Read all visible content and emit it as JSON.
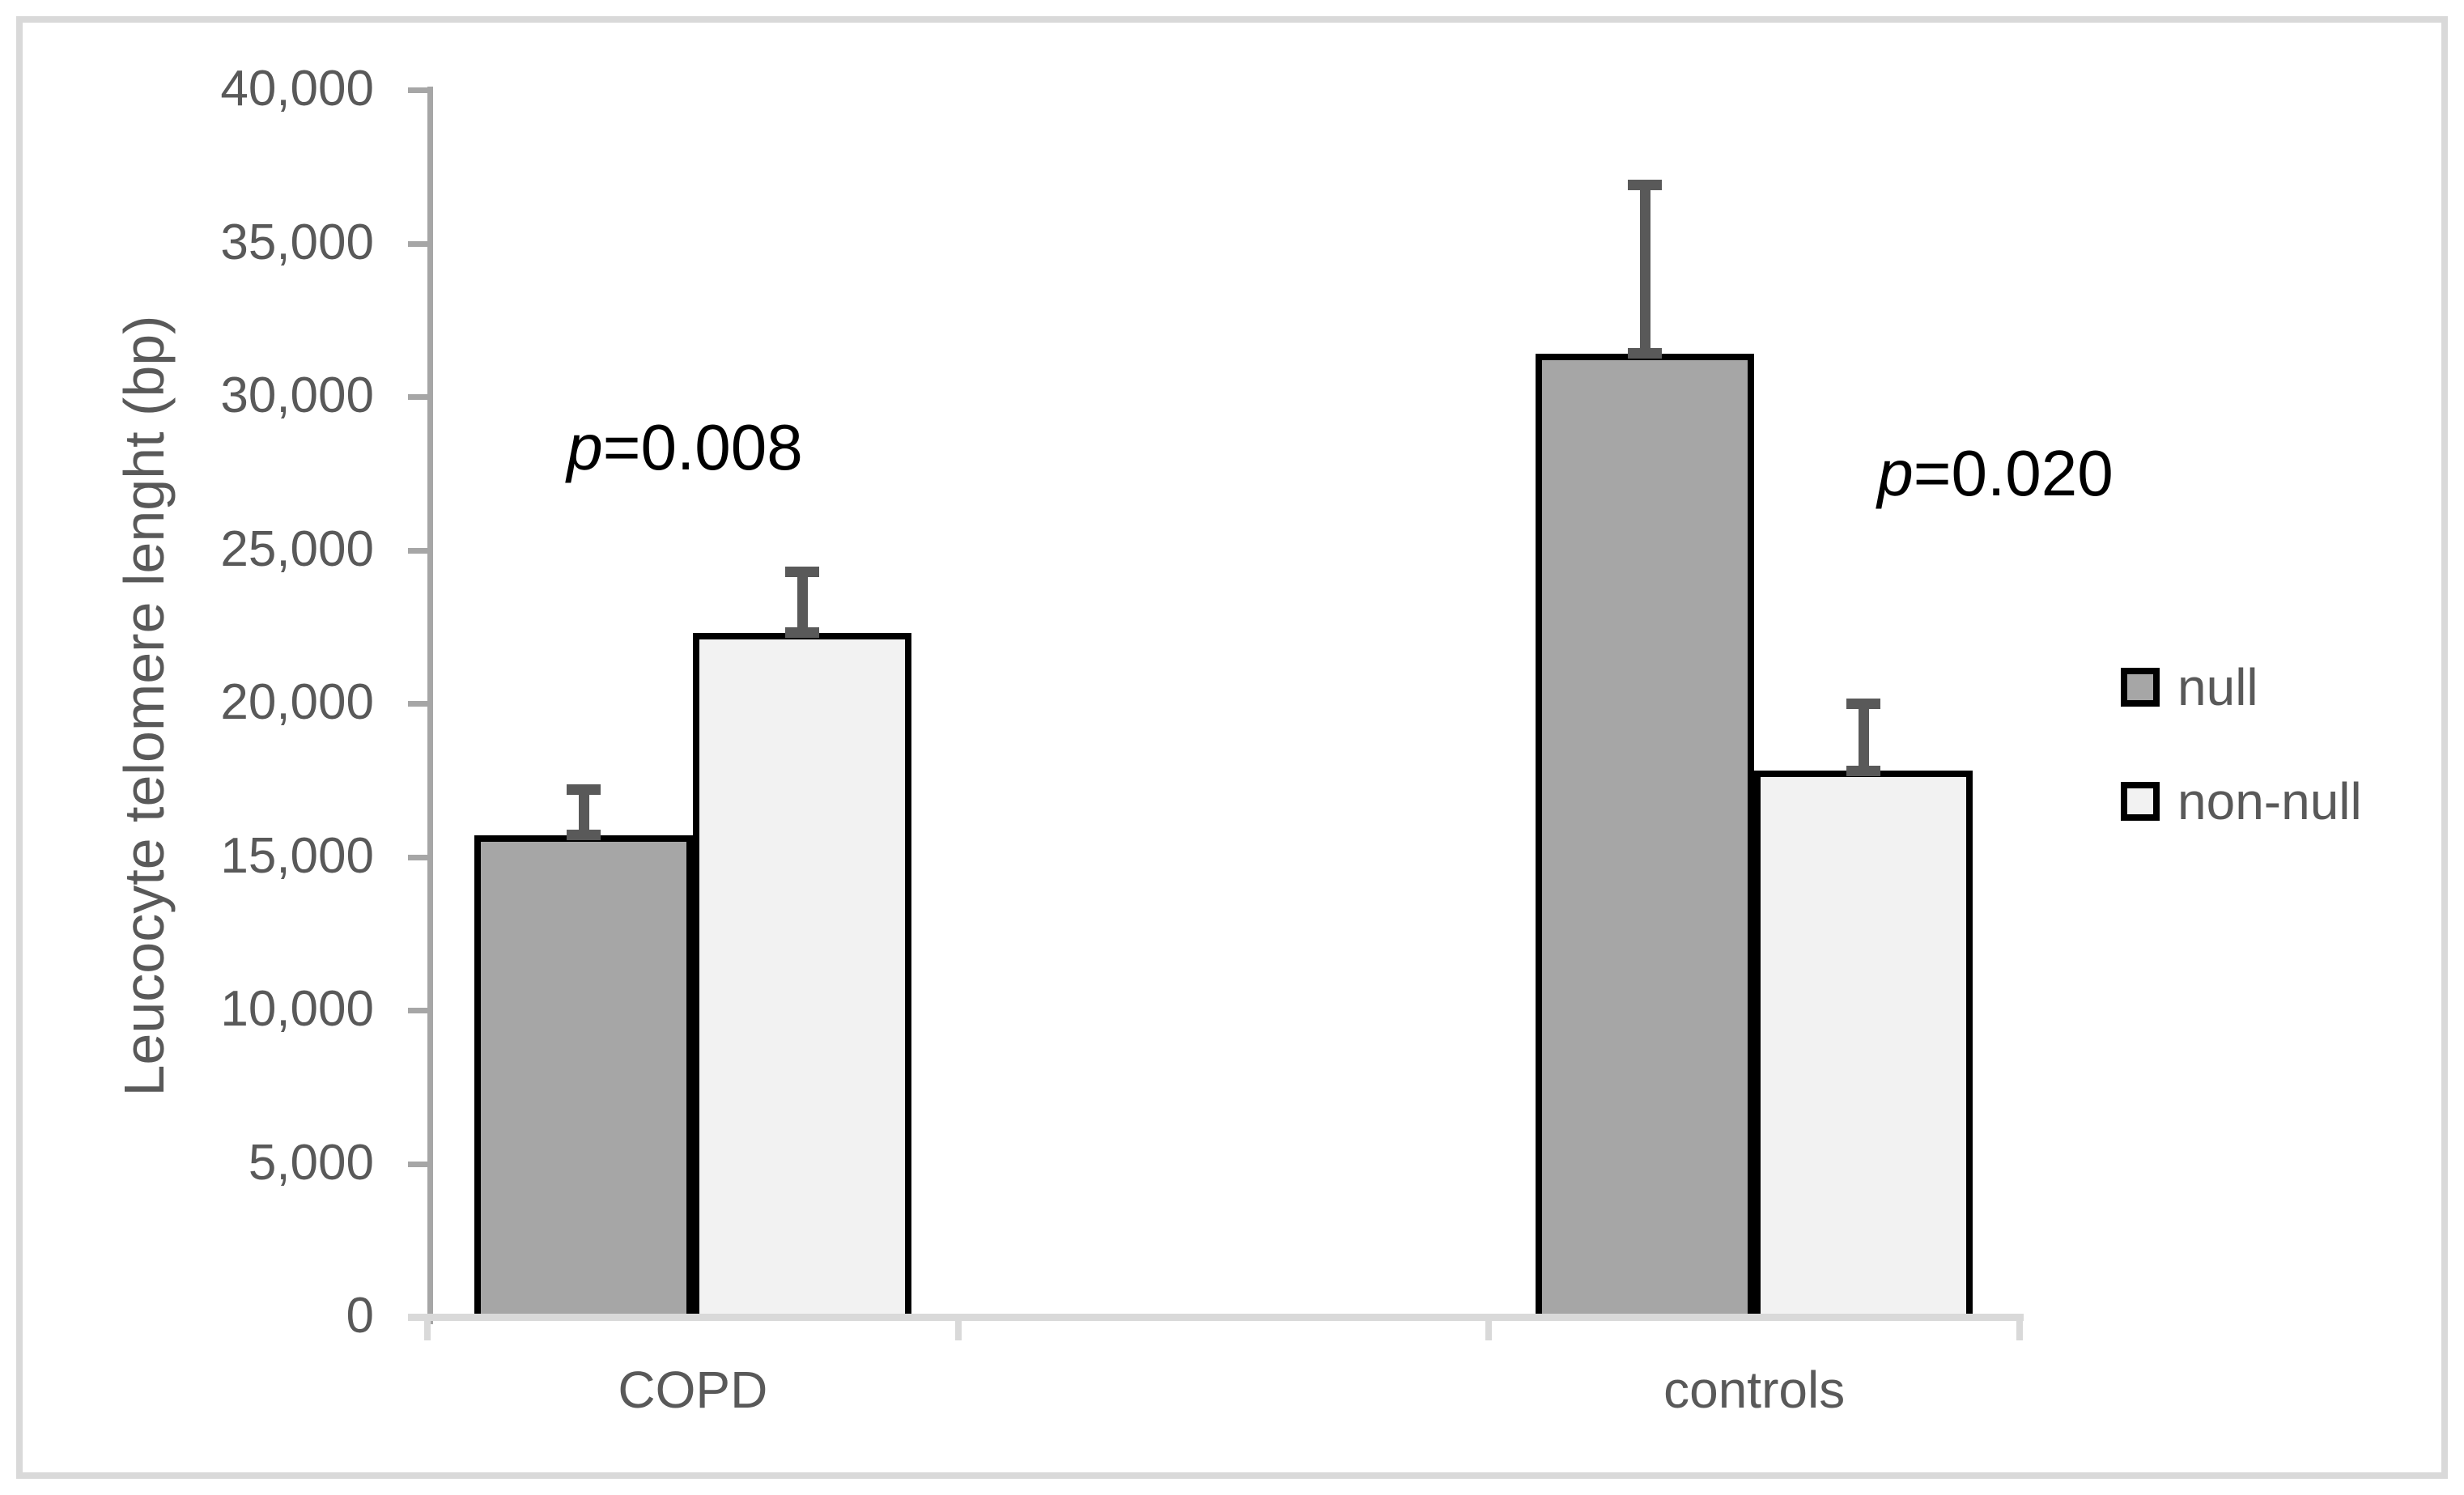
{
  "chart_data": {
    "type": "bar",
    "title": "",
    "xlabel": "",
    "ylabel": "Leucocyte telomere lenght (bp)",
    "ylim": [
      0,
      40000
    ],
    "ytick_step": 5000,
    "ytick_labels": [
      "0",
      "5,000",
      "10,000",
      "15,000",
      "20,000",
      "25,000",
      "30,000",
      "35,000",
      "40,000"
    ],
    "grid": false,
    "categories": [
      "COPD",
      "controls"
    ],
    "series": [
      {
        "name": "null",
        "fill": "#a6a6a6",
        "values": [
          15700,
          31400
        ],
        "errors_plus": [
          1500,
          5500
        ]
      },
      {
        "name": "non-null",
        "fill": "#f2f2f2",
        "values": [
          22300,
          17800
        ],
        "errors_plus": [
          2000,
          2200
        ]
      }
    ],
    "annotations": [
      {
        "italic": "p",
        "text": "=0.008",
        "near_category": "COPD"
      },
      {
        "italic": "p",
        "text": "=0.020",
        "near_category": "controls"
      }
    ],
    "legend_position": "right",
    "colors": {
      "bar_border": "#000000",
      "error_bar": "#595959",
      "y_axis": "#a6a6a6",
      "x_axis": "#d9d9d9",
      "text": "#595959",
      "annotation_text": "#000000",
      "figure_border": "#d9d9d9",
      "background": "#ffffff"
    }
  }
}
